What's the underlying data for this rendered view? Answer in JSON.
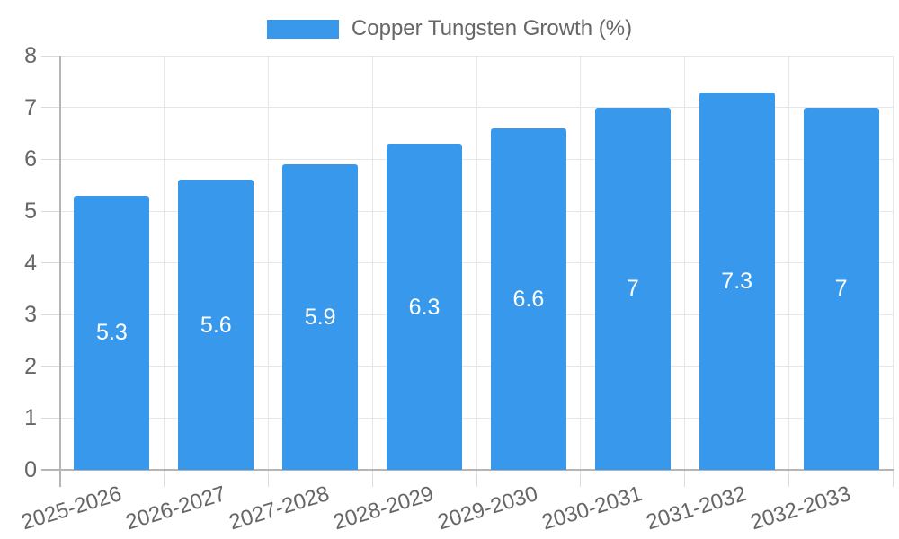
{
  "chart_data": {
    "type": "bar",
    "title": "Copper Tungsten Growth (%)",
    "legend_entries": [
      "Copper Tungsten Growth (%)"
    ],
    "legend_position": "top-center",
    "categories": [
      "2025-2026",
      "2026-2027",
      "2027-2028",
      "2028-2029",
      "2029-2030",
      "2030-2031",
      "2031-2032",
      "2032-2033"
    ],
    "values": [
      5.3,
      5.6,
      5.9,
      6.3,
      6.6,
      7,
      7.3,
      7
    ],
    "bar_labels": [
      "5.3",
      "5.6",
      "5.9",
      "6.3",
      "6.6",
      "7",
      "7.3",
      "7"
    ],
    "bar_label_position": "center-of-bar",
    "xlabel": "",
    "ylabel": "",
    "ylim": [
      0,
      8
    ],
    "yticks": [
      0,
      1,
      2,
      3,
      4,
      5,
      6,
      7,
      8
    ],
    "grid": true,
    "colors": {
      "bar": "#3899EC",
      "grid_line": "#E6E6E6",
      "tick_line": "#DBDBDB",
      "axis_line": "#B5B5B5",
      "label_text": "#666666",
      "bar_value_text": "#FFFFFF",
      "background": "#FFFFFF"
    }
  }
}
